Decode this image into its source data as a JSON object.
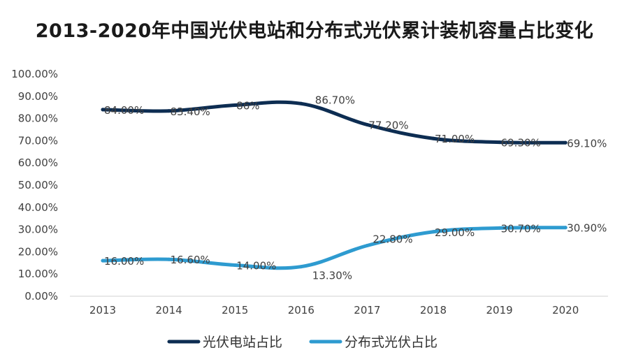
{
  "chart_data": {
    "type": "line",
    "title": "2013-2020年中国光伏电站和分布式光伏累计装机容量占比变化",
    "xlabel": "",
    "ylabel": "",
    "categories": [
      "2013",
      "2014",
      "2015",
      "2016",
      "2017",
      "2018",
      "2019",
      "2020"
    ],
    "ylim": [
      0,
      100
    ],
    "yticks": [
      "0.00%",
      "10.00%",
      "20.00%",
      "30.00%",
      "40.00%",
      "50.00%",
      "60.00%",
      "70.00%",
      "80.00%",
      "90.00%",
      "100.00%"
    ],
    "grid": false,
    "legend_position": "bottom",
    "series": [
      {
        "name": "光伏电站占比",
        "color": "#0d2d52",
        "values": [
          84.0,
          83.4,
          86.0,
          86.7,
          77.2,
          71.0,
          69.3,
          69.1
        ],
        "labels": [
          "84.00%",
          "83.40%",
          "86%",
          "86.70%",
          "77.20%",
          "71.00%",
          "69.30%",
          "69.10%"
        ]
      },
      {
        "name": "分布式光伏占比",
        "color": "#2e9bd0",
        "values": [
          16.0,
          16.6,
          14.0,
          13.3,
          22.8,
          29.0,
          30.7,
          30.9
        ],
        "labels": [
          "16.00%",
          "16.60%",
          "14.00%",
          "13.30%",
          "22.80%",
          "29.00%",
          "30.70%",
          "30.90%"
        ]
      }
    ]
  }
}
